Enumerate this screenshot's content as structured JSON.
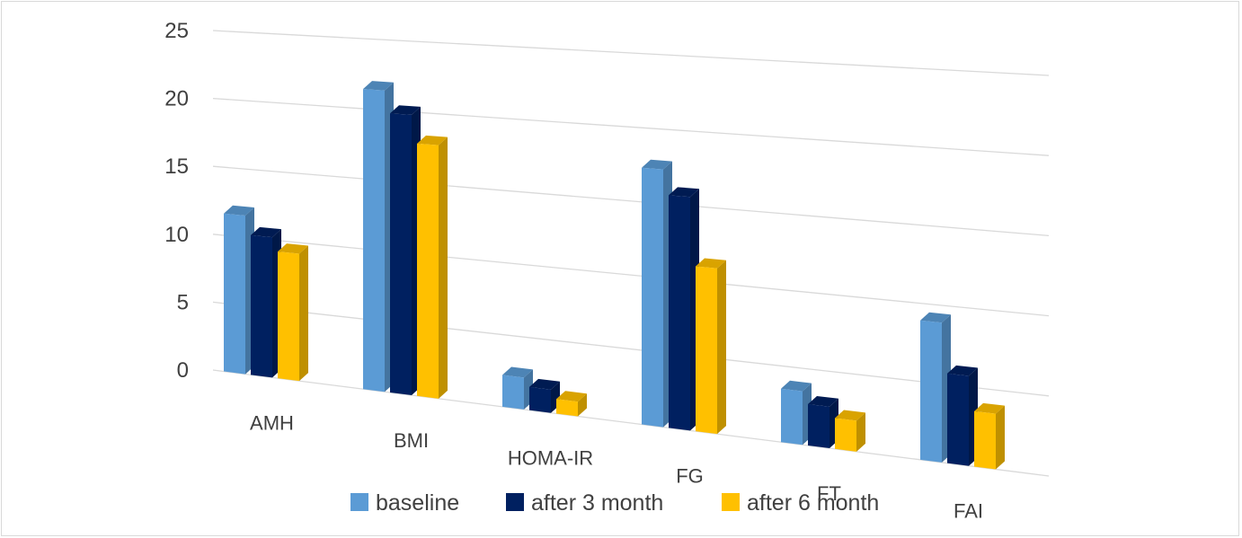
{
  "chart_data": {
    "type": "bar",
    "title": "",
    "xlabel": "",
    "ylabel": "",
    "categories": [
      "AMH",
      "BMI",
      "HOMA-IR",
      "FG",
      "FT",
      "FAI"
    ],
    "series": [
      {
        "name": "baseline",
        "values": [
          11.6,
          21.4,
          2.2,
          17.3,
          3.5,
          8.9
        ]
      },
      {
        "name": "after 3 month",
        "values": [
          10.2,
          19.8,
          1.6,
          15.6,
          2.7,
          5.7
        ]
      },
      {
        "name": "after 6 month",
        "values": [
          9.2,
          17.8,
          1.0,
          11.0,
          2.0,
          3.5
        ]
      }
    ],
    "yticks": [
      "0",
      "5",
      "10",
      "15",
      "20",
      "25"
    ],
    "ylim": [
      0,
      25
    ],
    "grid": true,
    "legend_position": "bottom",
    "colors": {
      "series": [
        "#5b9bd5",
        "#002060",
        "#ffc000"
      ],
      "grid": "#d9d9d9",
      "text": "#404040"
    }
  }
}
